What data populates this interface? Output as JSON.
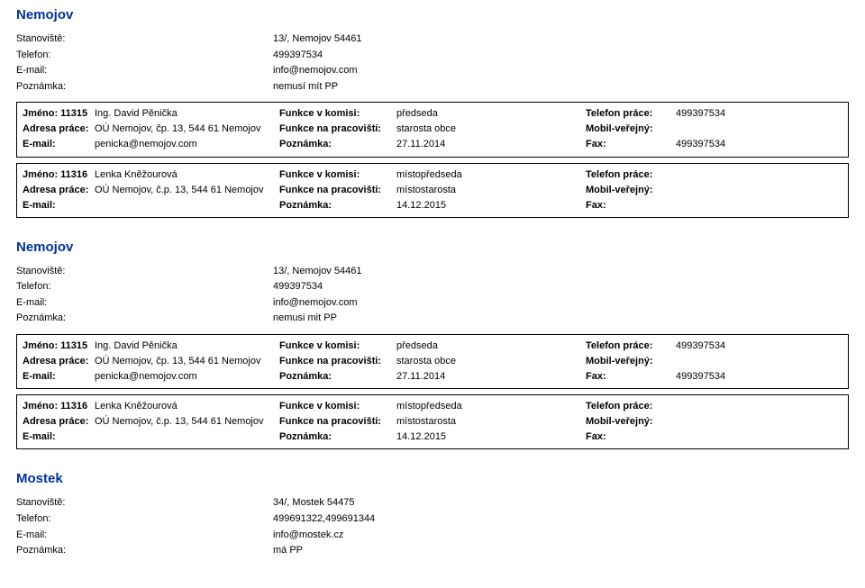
{
  "sections": [
    {
      "title": "Nemojov",
      "header": {
        "stanoviste_label": "Stanoviště:",
        "stanoviste_value": "13/, Nemojov 54461",
        "telefon_label": "Telefon:",
        "telefon_value": "499397534",
        "email_label": "E-mail:",
        "email_value": "info@nemojov.com",
        "poznamka_label": "Poznámka:",
        "poznamka_value": "nemusí mít PP"
      },
      "records": [
        {
          "r1": {
            "a_label": "Jméno: 11315",
            "a_value": "Ing. David Pěnička",
            "b_label": "Funkce v komisi:",
            "b_value": "předseda",
            "c_label": "Telefon práce:",
            "c_value": "499397534"
          },
          "r2": {
            "a_label": "Adresa práce:",
            "a_value": "OÚ Nemojov, čp. 13, 544 61 Nemojov",
            "b_label": "Funkce na pracovišti:",
            "b_value": "starosta obce",
            "c_label": "Mobil-veřejný:",
            "c_value": ""
          },
          "r3": {
            "a_label": "E-mail:",
            "a_value": "penicka@nemojov.com",
            "b_label": "Poznámka:",
            "b_value": "27.11.2014",
            "c_label": "Fax:",
            "c_value": "499397534"
          }
        },
        {
          "r1": {
            "a_label": "Jméno: 11316",
            "a_value": "Lenka Kněžourová",
            "b_label": "Funkce v komisi:",
            "b_value": "místopředseda",
            "c_label": "Telefon práce:",
            "c_value": ""
          },
          "r2": {
            "a_label": "Adresa práce:",
            "a_value": "OÚ Nemojov, č.p. 13, 544 61 Nemojov",
            "b_label": "Funkce na pracovišti:",
            "b_value": "místostarosta",
            "c_label": "Mobil-veřejný:",
            "c_value": ""
          },
          "r3": {
            "a_label": "E-mail:",
            "a_value": "",
            "b_label": "Poznámka:",
            "b_value": "14.12.2015",
            "c_label": "Fax:",
            "c_value": ""
          }
        }
      ]
    },
    {
      "title": "Nemojov",
      "header": {
        "stanoviste_label": "Stanoviště:",
        "stanoviste_value": "13/, Nemojov 54461",
        "telefon_label": "Telefon:",
        "telefon_value": "499397534",
        "email_label": "E-mail:",
        "email_value": "info@nemojov.com",
        "poznamka_label": "Poznámka:",
        "poznamka_value": "nemusi mit PP"
      },
      "records": [
        {
          "r1": {
            "a_label": "Jméno: 11315",
            "a_value": "Ing. David Pěnička",
            "b_label": "Funkce v komisi:",
            "b_value": "předseda",
            "c_label": "Telefon práce:",
            "c_value": "499397534"
          },
          "r2": {
            "a_label": "Adresa práce:",
            "a_value": "OÚ Nemojov, čp. 13, 544 61 Nemojov",
            "b_label": "Funkce na pracovišti:",
            "b_value": "starosta obce",
            "c_label": "Mobil-veřejný:",
            "c_value": ""
          },
          "r3": {
            "a_label": "E-mail:",
            "a_value": "penicka@nemojov.com",
            "b_label": "Poznámka:",
            "b_value": "27.11.2014",
            "c_label": "Fax:",
            "c_value": "499397534"
          }
        },
        {
          "r1": {
            "a_label": "Jméno: 11316",
            "a_value": "Lenka Kněžourová",
            "b_label": "Funkce v komisi:",
            "b_value": "místopředseda",
            "c_label": "Telefon práce:",
            "c_value": ""
          },
          "r2": {
            "a_label": "Adresa práce:",
            "a_value": "OÚ Nemojov, č.p. 13, 544 61 Nemojov",
            "b_label": "Funkce na pracovišti:",
            "b_value": "místostarosta",
            "c_label": "Mobil-veřejný:",
            "c_value": ""
          },
          "r3": {
            "a_label": "E-mail:",
            "a_value": "",
            "b_label": "Poznámka:",
            "b_value": "14.12.2015",
            "c_label": "Fax:",
            "c_value": ""
          }
        }
      ]
    },
    {
      "title": "Mostek",
      "header": {
        "stanoviste_label": "Stanoviště:",
        "stanoviste_value": "34/, Mostek 54475",
        "telefon_label": "Telefon:",
        "telefon_value": "499691322,499691344",
        "email_label": "E-mail:",
        "email_value": "info@mostek.cz",
        "poznamka_label": "Poznámka:",
        "poznamka_value": "má PP"
      },
      "records": []
    }
  ]
}
